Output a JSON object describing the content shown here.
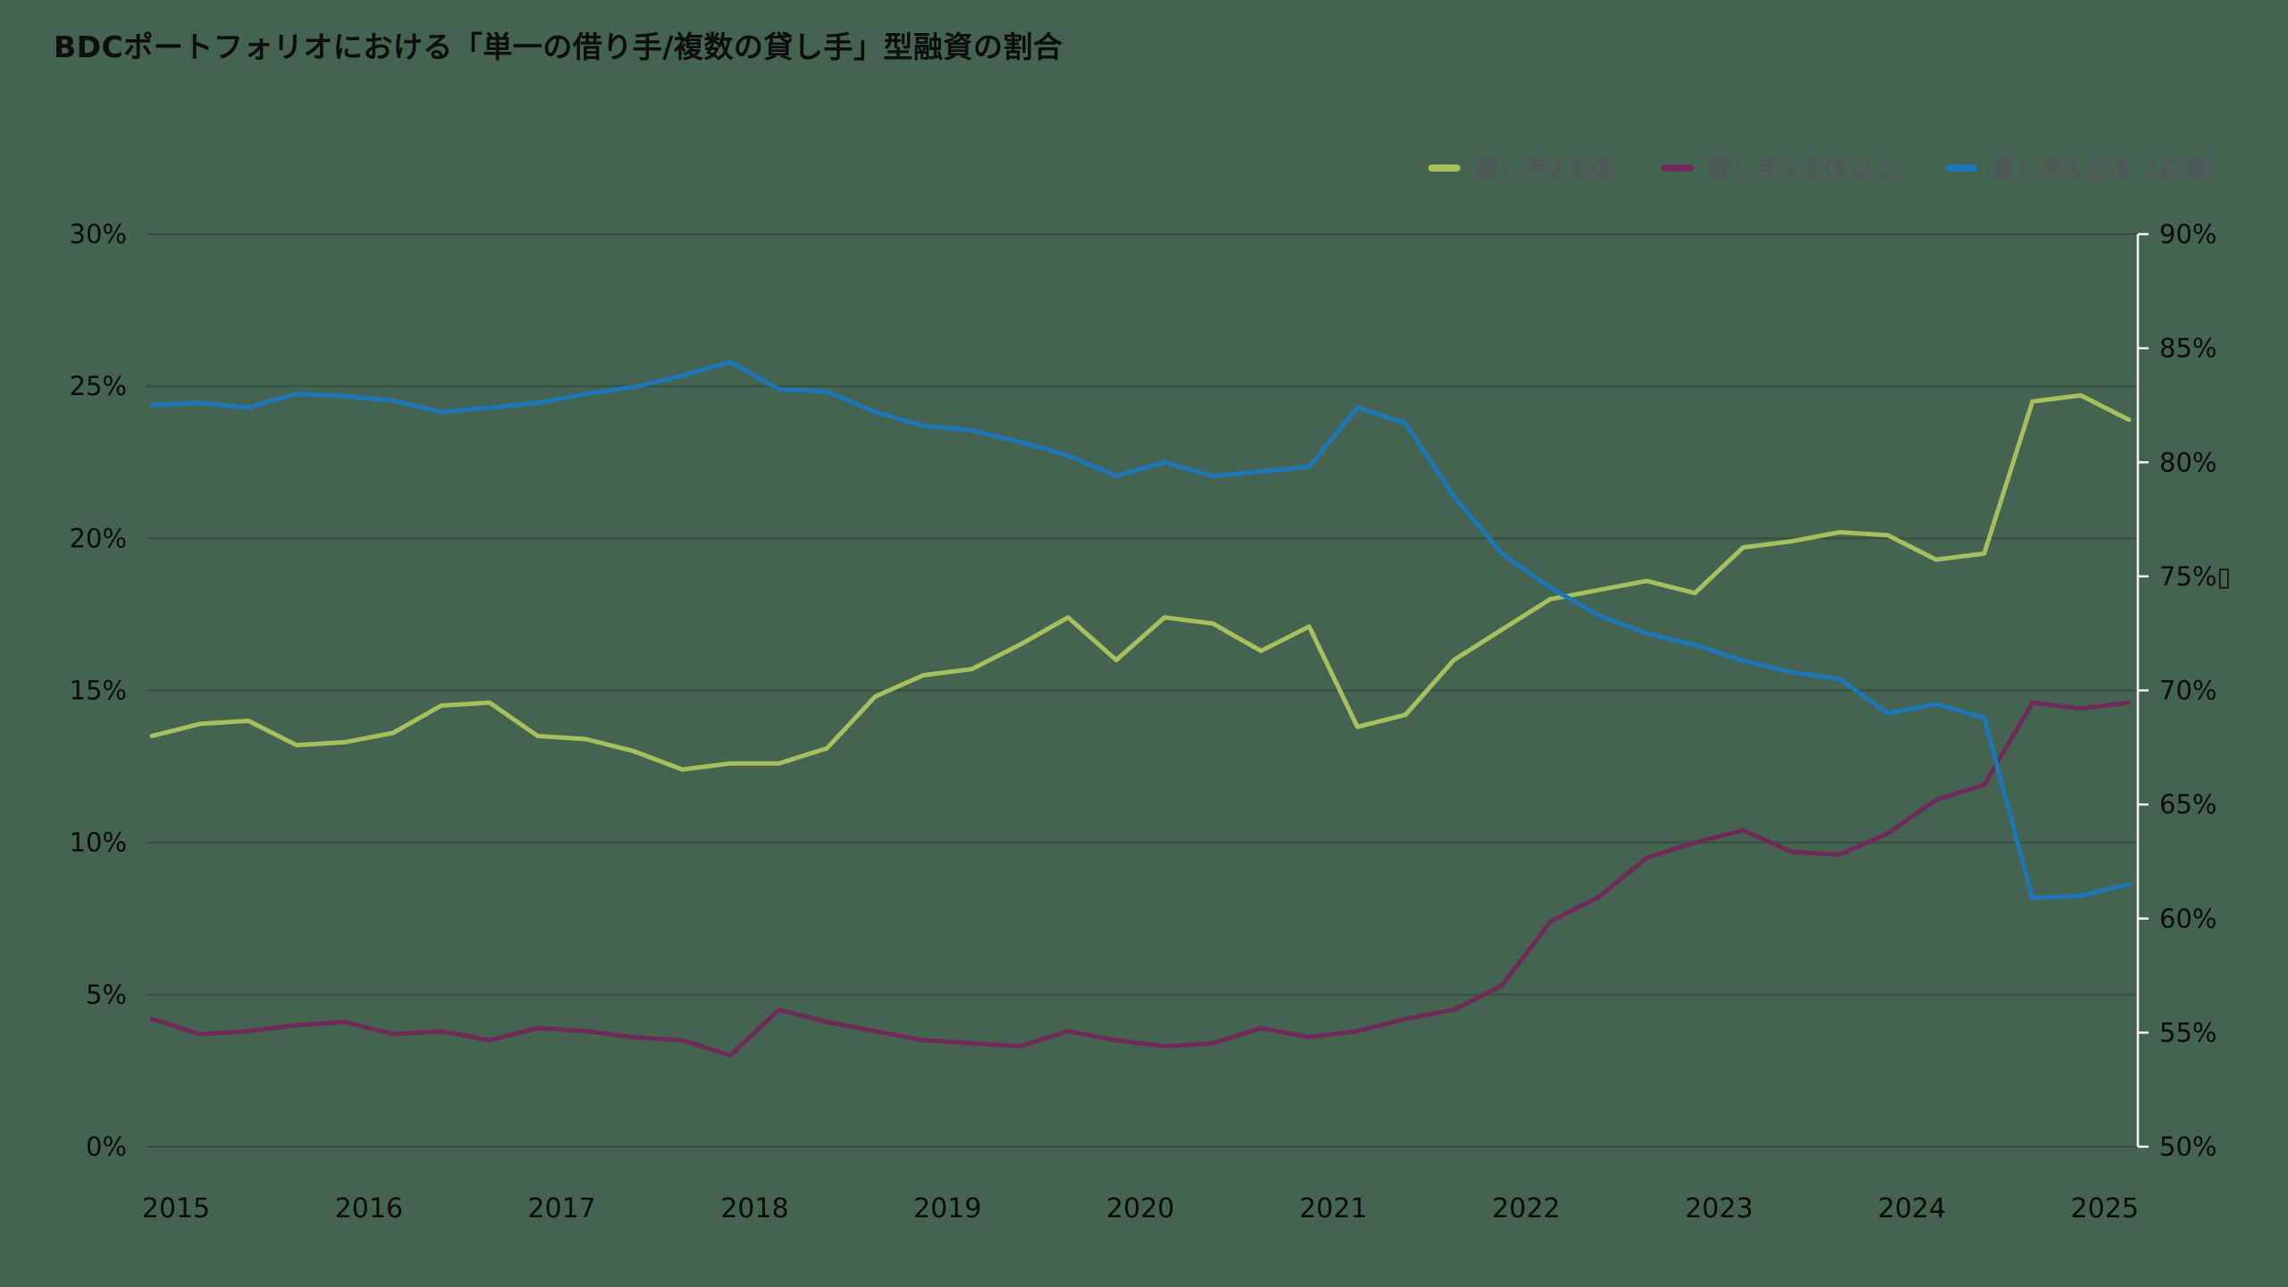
{
  "title": "BDCポートフォリオにおける「単一の借り手/複数の貸し手」型融資の割合",
  "legend": [
    {
      "label": "貸し手2主体",
      "color": "#a7c05e"
    },
    {
      "label": "貸し手3主体以上",
      "color": "#6f2a59"
    },
    {
      "label": "貸し手1主体（右軸）",
      "color": "#1d76b5"
    }
  ],
  "chart_data": {
    "type": "line",
    "title": "BDCポートフォリオにおける「単一の借り手/複数の貸し手」型融資の割合",
    "x_unit": "quarter",
    "x_start_year": 2015,
    "x_points_per_year": 4,
    "x_labels": [
      "2015",
      "2016",
      "2017",
      "2018",
      "2019",
      "2020",
      "2021",
      "2022",
      "2023",
      "2024",
      "2025"
    ],
    "left_axis": {
      "min": 0,
      "max": 30,
      "tick_step": 5,
      "ticks": [
        "0%",
        "5%",
        "10%",
        "15%",
        "20%",
        "25%",
        "30%"
      ]
    },
    "right_axis": {
      "min": 50,
      "max": 90,
      "tick_step": 5,
      "ticks": [
        "50%",
        "55%",
        "60%",
        "65%",
        "70%",
        "75%▯",
        "80%",
        "85%",
        "90%"
      ]
    },
    "grid": "horizontal",
    "legend_position": "top-right",
    "series": [
      {
        "name": "貸し手2主体",
        "axis": "left",
        "color": "#a7c05e",
        "values": [
          13.5,
          13.9,
          14.0,
          13.2,
          13.3,
          13.6,
          14.5,
          14.6,
          13.5,
          13.4,
          13.0,
          12.4,
          12.6,
          12.6,
          13.1,
          14.8,
          15.5,
          15.7,
          16.5,
          17.4,
          16.0,
          17.4,
          17.2,
          16.3,
          17.1,
          13.8,
          14.2,
          16.0,
          17.0,
          18.0,
          18.3,
          18.6,
          18.2,
          19.7,
          19.9,
          20.2,
          20.1,
          19.3,
          19.5,
          24.5,
          24.7,
          23.9
        ]
      },
      {
        "name": "貸し手3主体以上",
        "axis": "left",
        "color": "#6f2a59",
        "values": [
          4.2,
          3.7,
          3.8,
          4.0,
          4.1,
          3.7,
          3.8,
          3.5,
          3.9,
          3.8,
          3.6,
          3.5,
          3.0,
          4.5,
          4.1,
          3.8,
          3.5,
          3.4,
          3.3,
          3.8,
          3.5,
          3.3,
          3.4,
          3.9,
          3.6,
          3.8,
          4.2,
          4.5,
          5.3,
          7.4,
          8.2,
          9.5,
          10.0,
          10.4,
          9.7,
          9.6,
          10.3,
          11.4,
          11.9,
          14.6,
          14.4,
          14.6
        ]
      },
      {
        "name": "貸し手1主体（右軸）",
        "axis": "right",
        "color": "#1d76b5",
        "values": [
          82.5,
          82.6,
          82.4,
          83.0,
          82.9,
          82.7,
          82.2,
          82.4,
          82.6,
          83.0,
          83.3,
          83.8,
          84.4,
          83.2,
          83.1,
          82.2,
          81.6,
          81.4,
          80.9,
          80.3,
          79.4,
          80.0,
          79.4,
          79.6,
          79.8,
          82.4,
          81.7,
          78.5,
          76.0,
          74.5,
          73.3,
          72.5,
          72.0,
          71.3,
          70.8,
          70.5,
          69.0,
          69.4,
          68.8,
          60.9,
          61.0,
          61.5
        ]
      }
    ]
  },
  "colors": {
    "background": "#446350",
    "grid": "rgba(0,0,0,0.2)",
    "axis_text": "#0d0d0d",
    "right_axis_line": "#f5f5f2",
    "legend_text": "#53565e"
  }
}
